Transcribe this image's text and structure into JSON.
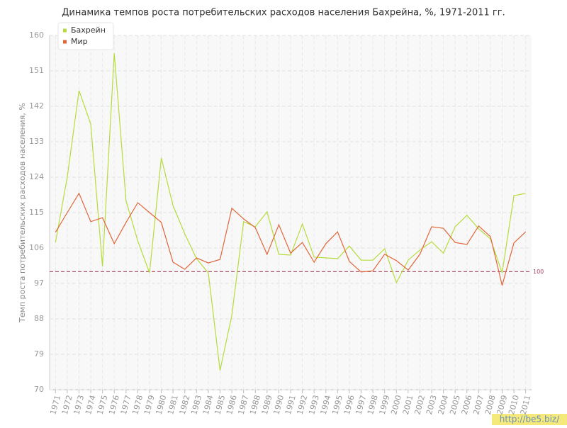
{
  "chart_data": {
    "type": "line",
    "title": "Динамика темпов роста потребительских расходов населения Бахрейна, %, 1971-2011 гг.",
    "y_label": "Темп роста потребительских расходов населения, %",
    "categories": [
      "1971",
      "1972",
      "1973",
      "1974",
      "1975",
      "1976",
      "1977",
      "1978",
      "1979",
      "1980",
      "1981",
      "1982",
      "1983",
      "1984",
      "1985",
      "1986",
      "1987",
      "1988",
      "1989",
      "1990",
      "1991",
      "1992",
      "1993",
      "1994",
      "1995",
      "1996",
      "1997",
      "1998",
      "1999",
      "2000",
      "2001",
      "2002",
      "2003",
      "2004",
      "2005",
      "2006",
      "2007",
      "2008",
      "2009",
      "2010",
      "2011"
    ],
    "series": [
      {
        "name": "Бахрейн",
        "color": "#b5dc3c",
        "values": [
          107.4,
          124,
          146,
          137.5,
          101.3,
          155.5,
          118,
          107.8,
          99.7,
          128.9,
          116.8,
          109.6,
          103.3,
          99.7,
          74.9,
          88.9,
          112.7,
          111.4,
          115.2,
          104.4,
          104.2,
          112.1,
          103.7,
          103.5,
          103.3,
          106.5,
          102.9,
          102.9,
          105.8,
          97.2,
          102.9,
          105.5,
          107.6,
          104.7,
          111.4,
          114.3,
          110.9,
          108.3,
          99.7,
          119.3,
          119.9
        ]
      },
      {
        "name": "Мир",
        "color": "#e0663a",
        "values": [
          110,
          115,
          119.9,
          112.7,
          113.7,
          107.1,
          112.5,
          117.5,
          115,
          112.5,
          102.4,
          100.6,
          103.5,
          102.2,
          103.1,
          116.1,
          113.4,
          111.2,
          104.4,
          111.9,
          104.7,
          107.4,
          102.4,
          107.1,
          110.1,
          102.6,
          99.9,
          100.2,
          104.4,
          102.8,
          100.4,
          104.4,
          111.4,
          111,
          107.4,
          106.9,
          111.6,
          108.9,
          96.5,
          107.3,
          110.1
        ]
      }
    ],
    "ylim": [
      70,
      160
    ],
    "yticks": [
      70,
      79,
      88,
      97,
      106,
      115,
      124,
      133,
      142,
      151,
      160
    ],
    "grid": true,
    "legend": "top-left",
    "reference_line": 100,
    "reference_color": "#a0405a",
    "watermark": "http://be5.biz/"
  }
}
